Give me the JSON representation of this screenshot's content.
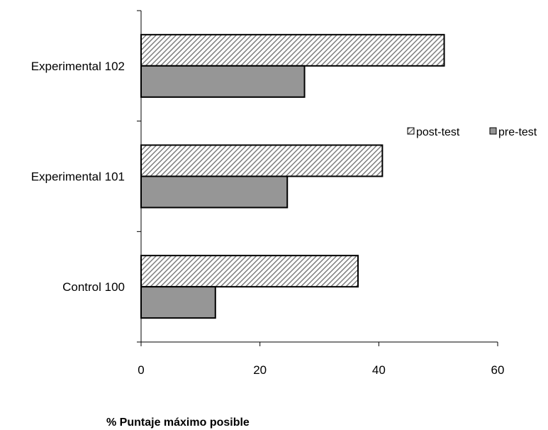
{
  "chart_data": {
    "type": "bar",
    "orientation": "horizontal",
    "categories": [
      "Control 100",
      "Experimental 101",
      "Experimental 102"
    ],
    "series": [
      {
        "name": "post-test",
        "values": [
          36.5,
          40.6,
          51.0
        ],
        "fill": "hatched",
        "color": "#a6a6a6"
      },
      {
        "name": "pre-test",
        "values": [
          12.5,
          24.6,
          27.5
        ],
        "fill": "solid",
        "color": "#969696"
      }
    ],
    "xlim": [
      0,
      60
    ],
    "xticks": [
      0,
      20,
      40,
      60
    ],
    "xlabel": "% Puntaje máximo posible",
    "ylabel": "",
    "title": "",
    "grid": false,
    "legend_position": "right"
  }
}
